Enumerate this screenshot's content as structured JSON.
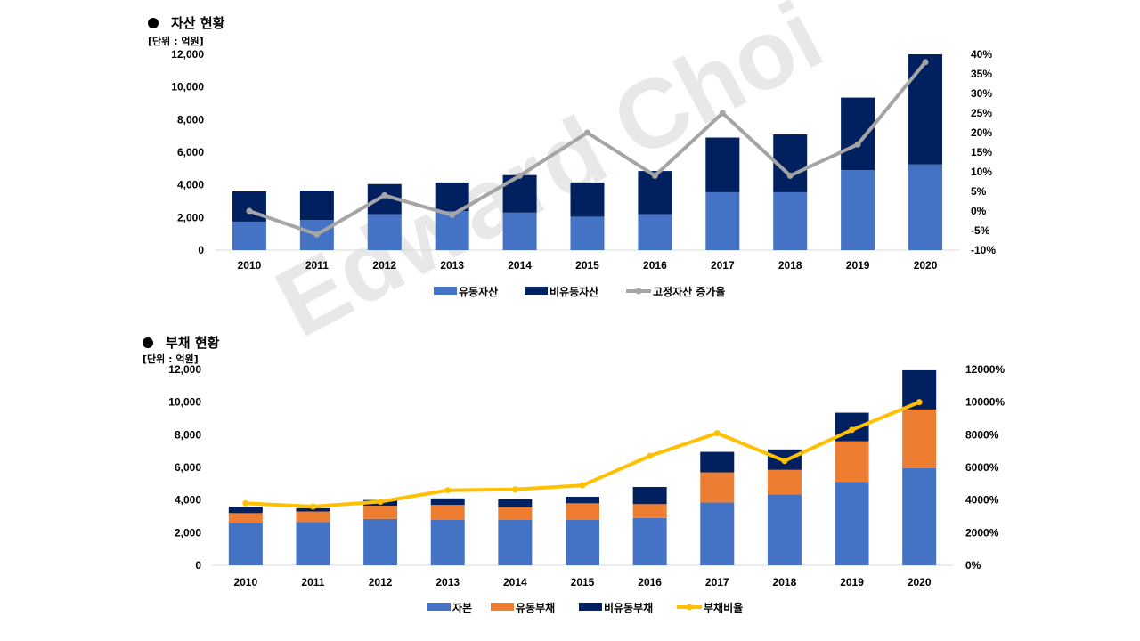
{
  "watermark": "Edward Choi",
  "chart_data": [
    {
      "type": "bar",
      "title": "자산 현황",
      "unit_label": "[단위 : 억원]",
      "stacked": true,
      "categories": [
        "2010",
        "2011",
        "2012",
        "2013",
        "2014",
        "2015",
        "2016",
        "2017",
        "2018",
        "2019",
        "2020"
      ],
      "series": [
        {
          "name": "유동자산",
          "kind": "bar",
          "axis": "left",
          "color": "#4472C4",
          "values": [
            1750,
            1850,
            2200,
            2400,
            2300,
            2050,
            2200,
            3550,
            3550,
            4900,
            5250
          ]
        },
        {
          "name": "비유동자산",
          "kind": "bar",
          "axis": "left",
          "color": "#002060",
          "values": [
            1850,
            1800,
            1850,
            1750,
            2300,
            2100,
            2650,
            3350,
            3550,
            4450,
            6750
          ]
        },
        {
          "name": "고정자산 증가율",
          "kind": "line",
          "axis": "right",
          "color": "#A5A5A5",
          "values": [
            0,
            -6,
            4,
            -1,
            9,
            20,
            9,
            25,
            9,
            17,
            38
          ]
        }
      ],
      "ylim": [
        0,
        12000
      ],
      "yticks": [
        "0",
        "2,000",
        "4,000",
        "6,000",
        "8,000",
        "10,000",
        "12,000"
      ],
      "y2lim": [
        -10,
        40
      ],
      "y2ticks": [
        "-10%",
        "-5%",
        "0%",
        "5%",
        "10%",
        "15%",
        "20%",
        "25%",
        "30%",
        "35%",
        "40%"
      ],
      "legend_position": "bottom"
    },
    {
      "type": "bar",
      "title": "부채 현황",
      "unit_label": "[단위 : 억원]",
      "stacked": true,
      "categories": [
        "2010",
        "2011",
        "2012",
        "2013",
        "2014",
        "2015",
        "2016",
        "2017",
        "2018",
        "2019",
        "2020"
      ],
      "series": [
        {
          "name": "자본",
          "kind": "bar",
          "axis": "left",
          "color": "#4472C4",
          "values": [
            2600,
            2650,
            2850,
            2800,
            2800,
            2800,
            2900,
            3850,
            4350,
            5100,
            5950
          ]
        },
        {
          "name": "유동부채",
          "kind": "bar",
          "axis": "left",
          "color": "#ED7D31",
          "values": [
            600,
            650,
            800,
            900,
            750,
            1000,
            850,
            1850,
            1500,
            2500,
            3600
          ]
        },
        {
          "name": "비유동부채",
          "kind": "bar",
          "axis": "left",
          "color": "#002060",
          "values": [
            400,
            200,
            350,
            400,
            500,
            400,
            1050,
            1250,
            1250,
            1750,
            2400
          ]
        },
        {
          "name": "부채비율",
          "kind": "line",
          "axis": "right",
          "color": "#FFC000",
          "values": [
            3800,
            3600,
            3900,
            4600,
            4650,
            4900,
            6700,
            8100,
            6400,
            8300,
            10000
          ]
        }
      ],
      "ylim": [
        0,
        12000
      ],
      "yticks": [
        "0",
        "2,000",
        "4,000",
        "6,000",
        "8,000",
        "10,000",
        "12,000"
      ],
      "y2lim": [
        0,
        12000
      ],
      "y2ticks": [
        "0%",
        "2000%",
        "4000%",
        "6000%",
        "8000%",
        "10000%",
        "12000%"
      ],
      "legend_position": "bottom"
    }
  ]
}
